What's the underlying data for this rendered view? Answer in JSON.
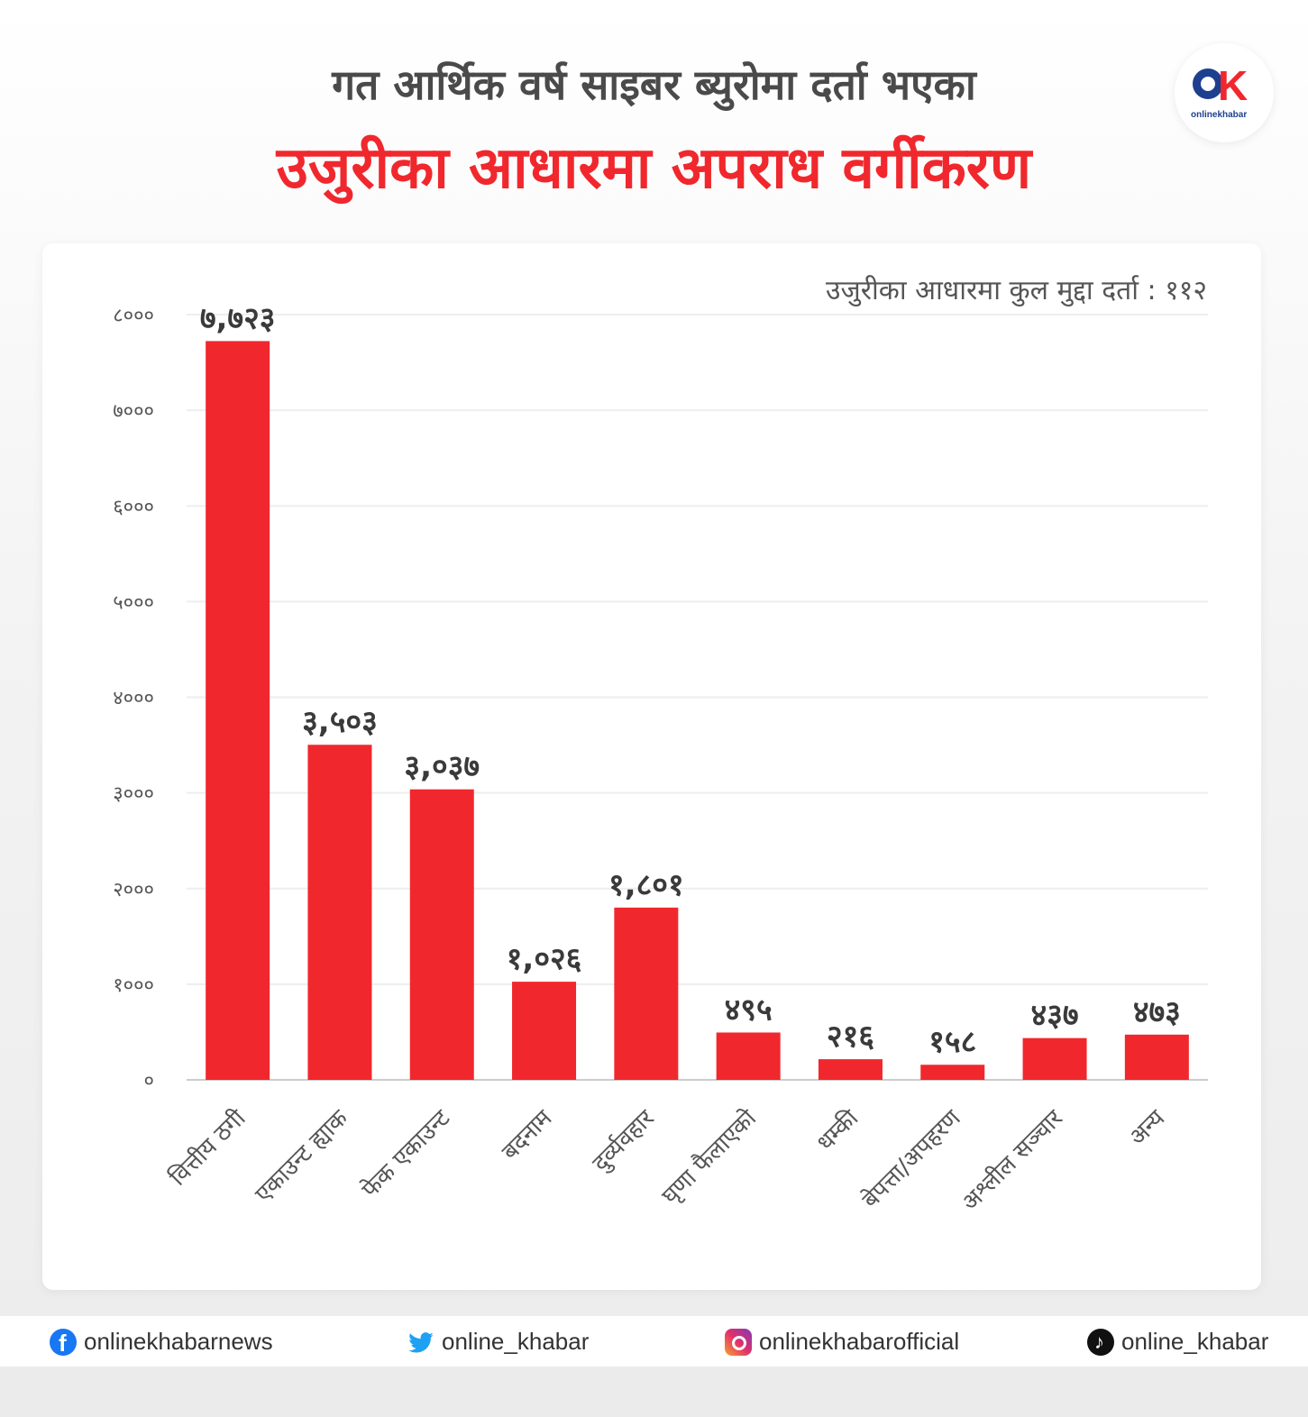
{
  "header": {
    "title_line1": "गत आर्थिक वर्ष साइबर ब्युरोमा दर्ता भएका",
    "title_line2": "उजुरीका आधारमा अपराध वर्गीकरण"
  },
  "logo": {
    "wordmark": "onlinekhabar"
  },
  "total_note": "उजुरीका आधारमा कुल मुद्दा दर्ता : ११२",
  "colors": {
    "bar": "#f0282d",
    "title_red": "#f0282d",
    "title_dark": "#4a4a4a",
    "grid": "#eeeeee"
  },
  "chart_data": {
    "type": "bar",
    "title": "उजुरीका आधारमा अपराध वर्गीकरण",
    "categories": [
      "वित्तीय ठगी",
      "एकाउन्ट ह्याक",
      "फेक एकाउन्ट",
      "बदनाम",
      "दुर्व्यवहार",
      "घृणा फैलाएको",
      "धम्की",
      "बेपत्ता/अपहरण",
      "अश्लील सञ्चार",
      "अन्य"
    ],
    "values": [
      7723,
      3503,
      3037,
      1026,
      1801,
      495,
      216,
      158,
      437,
      473
    ],
    "value_labels": [
      "७,७२३",
      "३,५०३",
      "३,०३७",
      "१,०२६",
      "१,८०१",
      "४९५",
      "२१६",
      "१५८",
      "४३७",
      "४७३"
    ],
    "yticks": [
      0,
      1000,
      2000,
      3000,
      4000,
      5000,
      6000,
      7000,
      8000
    ],
    "ytick_labels": [
      "०",
      "१०००",
      "२०००",
      "३०००",
      "४०००",
      "५०००",
      "६०००",
      "७०००",
      "८०००"
    ],
    "ylim": [
      0,
      8000
    ],
    "grid": true,
    "legend": "none"
  },
  "footer": {
    "facebook": "onlinekhabarnews",
    "twitter": "online_khabar",
    "instagram": "onlinekhabarofficial",
    "tiktok": "online_khabar"
  }
}
